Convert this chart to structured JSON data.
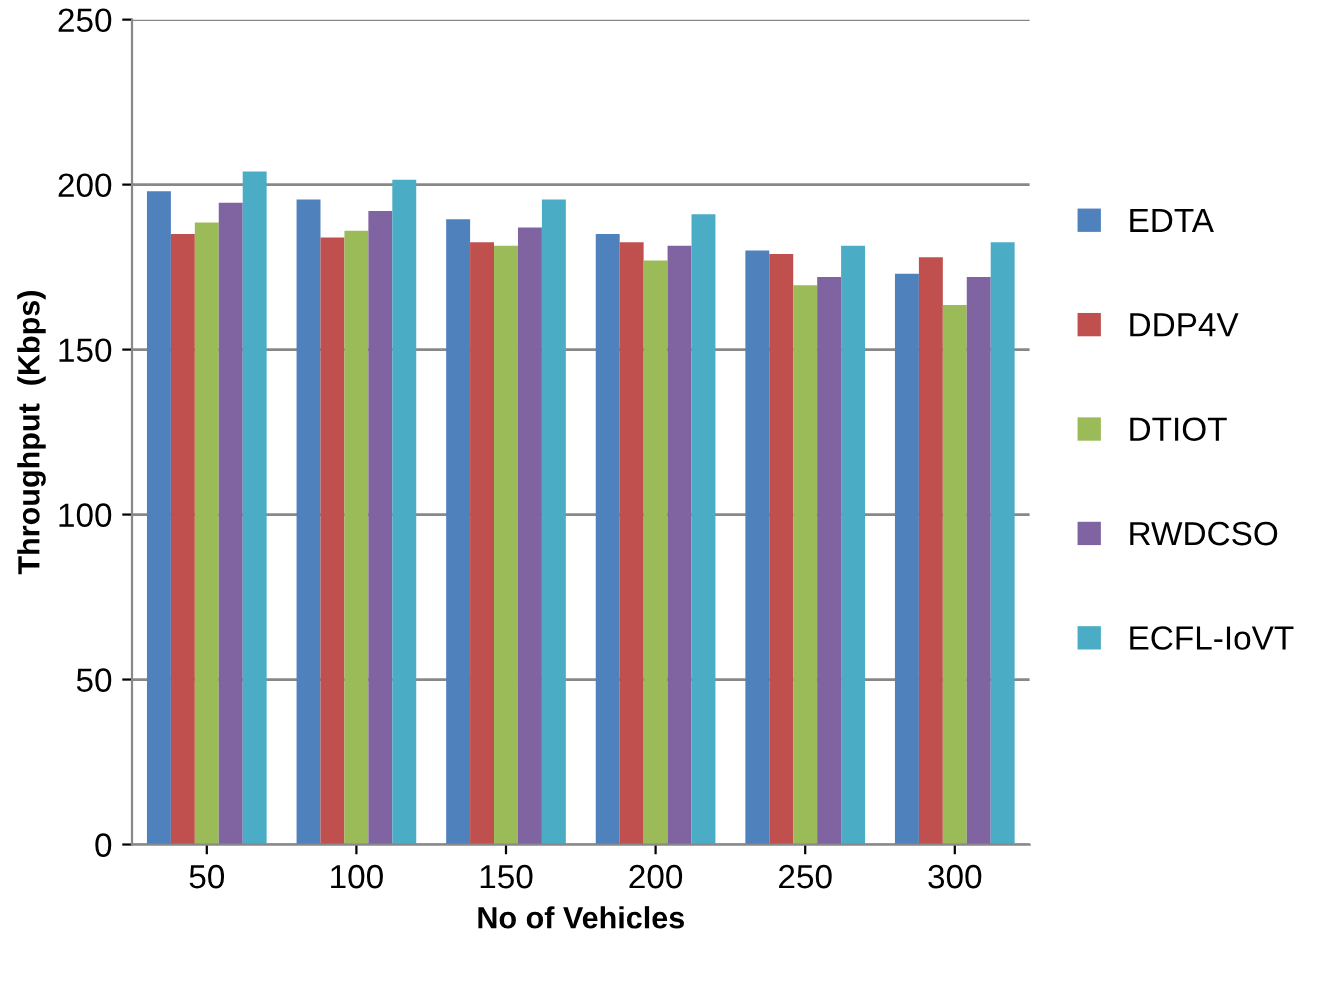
{
  "chart_data": {
    "type": "bar",
    "xlabel": "No of Vehicles",
    "ylabel": "Throughput  (Kbps)",
    "categories": [
      "50",
      "100",
      "150",
      "200",
      "250",
      "300"
    ],
    "series": [
      {
        "name": "EDTA",
        "color": "#4f81bd",
        "values": [
          198,
          195.5,
          189.5,
          185,
          180,
          173
        ]
      },
      {
        "name": "DDP4V",
        "color": "#c0504d",
        "values": [
          185,
          184,
          182.5,
          182.5,
          179,
          178
        ]
      },
      {
        "name": "DTIOT",
        "color": "#9bbb59",
        "values": [
          188.5,
          186,
          181.5,
          177,
          169.5,
          163.5
        ]
      },
      {
        "name": "RWDCSO",
        "color": "#8064a2",
        "values": [
          194.5,
          192,
          187,
          181.5,
          172,
          172
        ]
      },
      {
        "name": "ECFL-IoVT",
        "color": "#4bacc6",
        "values": [
          204,
          201.5,
          195.5,
          191,
          181.5,
          182.5
        ]
      }
    ],
    "ylim": [
      0,
      250
    ],
    "yticks": [
      0,
      50,
      100,
      150,
      200,
      250
    ],
    "grid": "y",
    "legend": "right"
  }
}
